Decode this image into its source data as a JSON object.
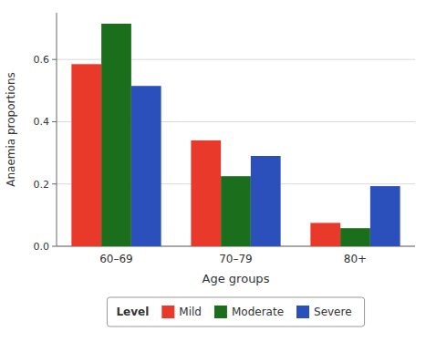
{
  "chart_data": {
    "type": "bar",
    "categories": [
      "60–69",
      "70–79",
      "80+"
    ],
    "series": [
      {
        "name": "Mild",
        "color": "#E8392A",
        "values": [
          0.585,
          0.34,
          0.075
        ]
      },
      {
        "name": "Moderate",
        "color": "#1B6E1B",
        "values": [
          0.715,
          0.225,
          0.058
        ]
      },
      {
        "name": "Severe",
        "color": "#2B4FBB",
        "values": [
          0.515,
          0.29,
          0.193
        ]
      }
    ],
    "xlabel": "Age groups",
    "ylabel": "Anaemia proportions",
    "legend_title": "Level",
    "legend": "bottom",
    "ylim": [
      0,
      0.75
    ],
    "yticks": [
      {
        "value": 0.0,
        "label": "0.0"
      },
      0.2,
      0.4,
      0.6
    ],
    "grid": true
  }
}
